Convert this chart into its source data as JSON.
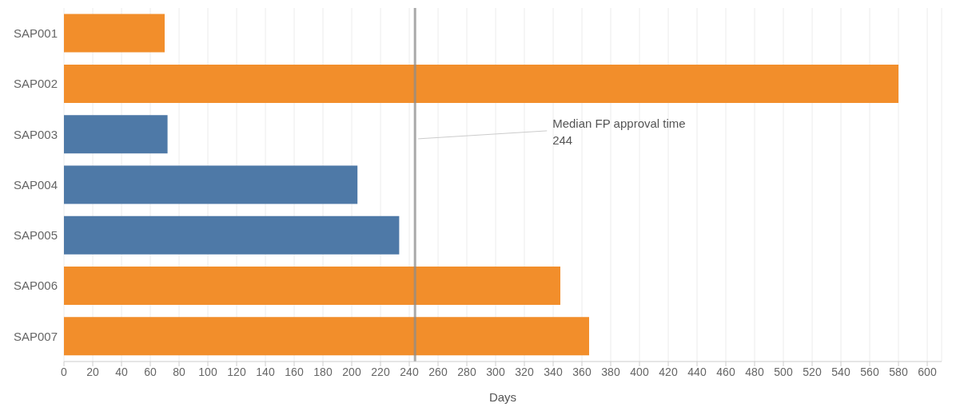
{
  "chart_data": {
    "type": "bar",
    "orientation": "horizontal",
    "xlabel": "Days",
    "categories": [
      "SAP001",
      "SAP002",
      "SAP003",
      "SAP004",
      "SAP005",
      "SAP006",
      "SAP007"
    ],
    "values": [
      70,
      580,
      72,
      204,
      233,
      345,
      365
    ],
    "colors": [
      "#f28e2b",
      "#f28e2b",
      "#4e79a7",
      "#4e79a7",
      "#4e79a7",
      "#f28e2b",
      "#f28e2b"
    ],
    "xlim": [
      0,
      610
    ],
    "xticks": [
      0,
      20,
      40,
      60,
      80,
      100,
      120,
      140,
      160,
      180,
      200,
      220,
      240,
      260,
      280,
      300,
      320,
      340,
      360,
      380,
      400,
      420,
      440,
      460,
      480,
      500,
      520,
      540,
      560,
      580,
      600
    ],
    "grid": "x",
    "legend": false,
    "ref_lines": [
      {
        "axis": "x",
        "value": 244,
        "label": "Median FP approval time\n244",
        "color": "#8c8c8c"
      }
    ]
  }
}
